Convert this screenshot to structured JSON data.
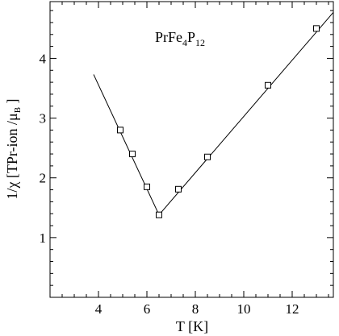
{
  "chart_data": {
    "type": "scatter",
    "annotation": {
      "main": "PrFe",
      "sub1": "4",
      "mid": "P",
      "sub2": "12"
    },
    "xlabel": "T [K]",
    "ylabel": {
      "main": "1/χ [TPr-ion /μ",
      "sub": "B",
      "end": " ]"
    },
    "xlim": [
      2.0,
      13.7
    ],
    "ylim": [
      0.0,
      4.95
    ],
    "x_major_ticks": [
      4,
      6,
      8,
      10,
      12
    ],
    "x_minor_step": 0.5,
    "y_major_ticks": [
      1,
      2,
      3,
      4
    ],
    "y_minor_step": 0.2,
    "grid": false,
    "series": [
      {
        "marker": "square",
        "points": [
          {
            "x": 4.9,
            "y": 2.8
          },
          {
            "x": 5.4,
            "y": 2.4
          },
          {
            "x": 6.0,
            "y": 1.85
          },
          {
            "x": 6.5,
            "y": 1.38
          },
          {
            "x": 7.3,
            "y": 1.81
          },
          {
            "x": 8.5,
            "y": 2.35
          },
          {
            "x": 11.0,
            "y": 3.55
          },
          {
            "x": 13.0,
            "y": 4.5
          }
        ]
      }
    ],
    "fit_lines": [
      {
        "points": [
          {
            "x": 3.8,
            "y": 3.73
          },
          {
            "x": 6.5,
            "y": 1.38
          }
        ]
      },
      {
        "points": [
          {
            "x": 6.5,
            "y": 1.38
          },
          {
            "x": 13.7,
            "y": 4.77
          }
        ]
      }
    ]
  }
}
